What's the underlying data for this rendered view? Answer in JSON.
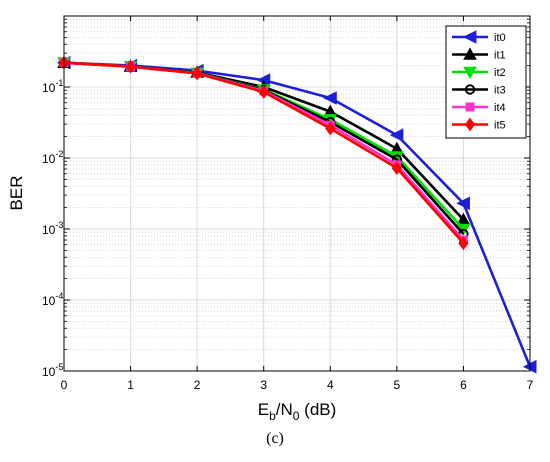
{
  "caption": "(c)",
  "chart_data": {
    "type": "line",
    "title": "",
    "xlabel": {
      "base": "E",
      "sub1": "b",
      "mid": "/N",
      "sub2": "0",
      "tail": " (dB)"
    },
    "ylabel": "BER",
    "xlim": [
      0,
      7
    ],
    "ylim": [
      1e-05,
      1
    ],
    "yscale": "log",
    "grid": true,
    "legend_position": "top-right",
    "x_ticks": [
      "0",
      "1",
      "2",
      "3",
      "4",
      "5",
      "6",
      "7"
    ],
    "y_ticks": [
      {
        "base": "10",
        "exp": "-5",
        "value": 1e-05
      },
      {
        "base": "10",
        "exp": "-4",
        "value": 0.0001
      },
      {
        "base": "10",
        "exp": "-3",
        "value": 0.001
      },
      {
        "base": "10",
        "exp": "-2",
        "value": 0.01
      },
      {
        "base": "10",
        "exp": "-1",
        "value": 0.1
      }
    ],
    "series": [
      {
        "name": "it0",
        "color": "#1f1fd6",
        "marker": "triangle-left",
        "x": [
          0,
          1,
          2,
          3,
          4,
          5,
          6,
          7
        ],
        "y": [
          0.22,
          0.2,
          0.17,
          0.125,
          0.07,
          0.021,
          0.0023,
          1.15e-05
        ]
      },
      {
        "name": "it1",
        "color": "#000000",
        "marker": "triangle-up",
        "x": [
          0,
          1,
          2,
          3,
          4,
          5,
          6
        ],
        "y": [
          0.22,
          0.195,
          0.16,
          0.1,
          0.045,
          0.0135,
          0.00135
        ]
      },
      {
        "name": "it2",
        "color": "#00e000",
        "marker": "triangle-down",
        "x": [
          0,
          1,
          2,
          3,
          4,
          5,
          6
        ],
        "y": [
          0.22,
          0.195,
          0.158,
          0.092,
          0.035,
          0.0105,
          0.001
        ]
      },
      {
        "name": "it3",
        "color": "#000000",
        "marker": "circle",
        "x": [
          0,
          1,
          2,
          3,
          4,
          5,
          6
        ],
        "y": [
          0.22,
          0.195,
          0.157,
          0.09,
          0.032,
          0.0095,
          0.00085
        ]
      },
      {
        "name": "it4",
        "color": "#ff33cc",
        "marker": "square",
        "x": [
          0,
          1,
          2,
          3,
          4,
          5,
          6
        ],
        "y": [
          0.22,
          0.194,
          0.156,
          0.088,
          0.029,
          0.008,
          0.0007
        ]
      },
      {
        "name": "it5",
        "color": "#ff0000",
        "marker": "diamond",
        "x": [
          0,
          1,
          2,
          3,
          4,
          5,
          6
        ],
        "y": [
          0.22,
          0.193,
          0.155,
          0.085,
          0.026,
          0.0072,
          0.00063
        ]
      }
    ]
  }
}
